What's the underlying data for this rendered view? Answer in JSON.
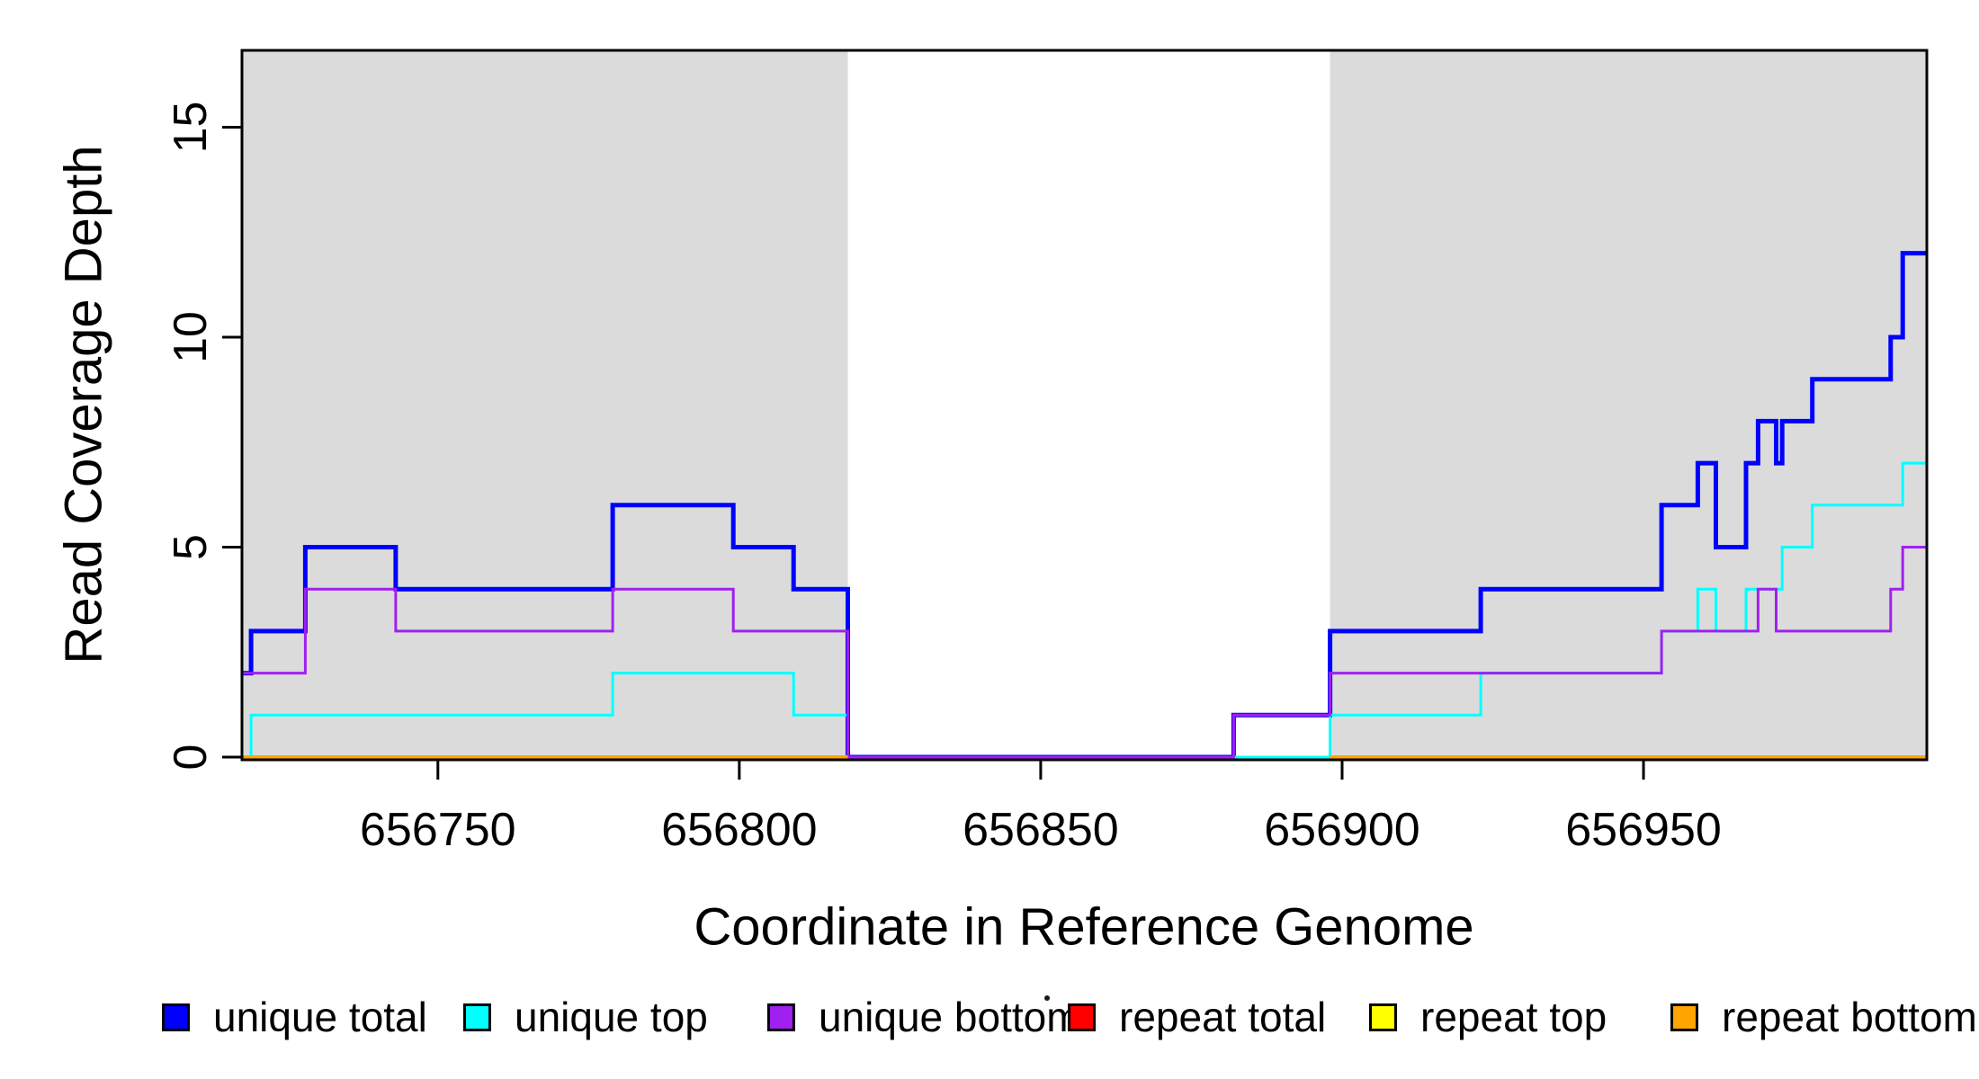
{
  "chart_data": {
    "type": "line",
    "subtype": "step-post",
    "title": "",
    "xlabel": "Coordinate in Reference Genome",
    "ylabel": "Read Coverage Depth",
    "xlim": [
      656717.5,
      656997
    ],
    "ylim": [
      0,
      16.8
    ],
    "x_ticks": [
      656750,
      656800,
      656850,
      656900,
      656950
    ],
    "y_ticks": [
      0,
      5,
      10,
      15
    ],
    "grid": false,
    "legend_position": "bottom",
    "shading": {
      "color": "#dbdbdb",
      "regions": [
        [
          656717.5,
          656818
        ],
        [
          656898,
          656997
        ]
      ]
    },
    "series": [
      {
        "name": "unique total",
        "color": "#0000ff",
        "width": 5,
        "segments": [
          [
            [
              656717.5,
              2
            ],
            [
              656719,
              3
            ],
            [
              656728,
              5
            ],
            [
              656743,
              4
            ],
            [
              656779,
              6
            ],
            [
              656799,
              5
            ],
            [
              656809,
              4
            ],
            [
              656818,
              0
            ],
            [
              656882,
              1
            ],
            [
              656898,
              3
            ],
            [
              656923,
              4
            ],
            [
              656953,
              6
            ],
            [
              656959,
              7
            ],
            [
              656962,
              5
            ],
            [
              656967,
              7
            ],
            [
              656969,
              8
            ],
            [
              656972,
              7
            ],
            [
              656973,
              8
            ],
            [
              656978,
              9
            ],
            [
              656991,
              10
            ],
            [
              656993,
              12
            ],
            [
              656997,
              12
            ]
          ]
        ]
      },
      {
        "name": "unique top",
        "color": "#00ffff",
        "width": 3,
        "segments": [
          [
            [
              656717.5,
              0
            ],
            [
              656719,
              1
            ],
            [
              656779,
              2
            ],
            [
              656809,
              1
            ],
            [
              656818,
              0
            ],
            [
              656898,
              1
            ],
            [
              656923,
              2
            ],
            [
              656953,
              3
            ],
            [
              656959,
              4
            ],
            [
              656962,
              3
            ],
            [
              656967,
              4
            ],
            [
              656973,
              5
            ],
            [
              656978,
              6
            ],
            [
              656993,
              7
            ],
            [
              656997,
              7
            ]
          ]
        ]
      },
      {
        "name": "unique bottom",
        "color": "#a020f0",
        "width": 3,
        "segments": [
          [
            [
              656717.5,
              2
            ],
            [
              656728,
              4
            ],
            [
              656743,
              3
            ],
            [
              656779,
              4
            ],
            [
              656799,
              3
            ],
            [
              656818,
              0
            ],
            [
              656882,
              1
            ],
            [
              656898,
              2
            ],
            [
              656953,
              3
            ],
            [
              656969,
              4
            ],
            [
              656972,
              3
            ],
            [
              656991,
              4
            ],
            [
              656993,
              5
            ],
            [
              656997,
              5
            ]
          ]
        ]
      },
      {
        "name": "repeat total",
        "color": "#ff0000",
        "width": 3,
        "segments": [
          [
            [
              656717.5,
              0
            ],
            [
              656818,
              0
            ]
          ],
          [
            [
              656898,
              0
            ],
            [
              656997,
              0
            ]
          ]
        ]
      },
      {
        "name": "repeat top",
        "color": "#ffff00",
        "width": 3,
        "segments": [
          [
            [
              656717.5,
              0
            ],
            [
              656818,
              0
            ]
          ],
          [
            [
              656898,
              0
            ],
            [
              656997,
              0
            ]
          ]
        ]
      },
      {
        "name": "repeat bottom",
        "color": "#ffa500",
        "width": 4,
        "segments": [
          [
            [
              656717.5,
              0
            ],
            [
              656818,
              0
            ]
          ],
          [
            [
              656898,
              0
            ],
            [
              656997,
              0
            ]
          ]
        ]
      }
    ]
  },
  "axes": {
    "x_title": "Coordinate in Reference Genome",
    "y_title": "Read Coverage Depth"
  },
  "legend": {
    "items": [
      {
        "label": "unique total",
        "color": "#0000ff"
      },
      {
        "label": "unique top",
        "color": "#00ffff"
      },
      {
        "label": "unique bottom",
        "color": "#a020f0"
      },
      {
        "label": "repeat total",
        "color": "#ff0000"
      },
      {
        "label": "repeat top",
        "color": "#ffff00"
      },
      {
        "label": "repeat bottom",
        "color": "#ffa500"
      }
    ]
  }
}
